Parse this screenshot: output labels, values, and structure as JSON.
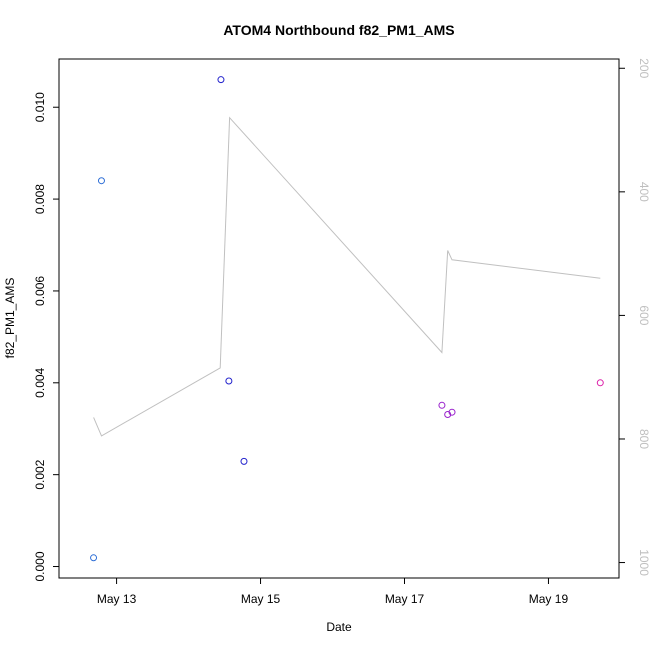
{
  "chart_data": {
    "type": "scatter",
    "title": "ATOM4 Northbound f82_PM1_AMS",
    "xlabel": "Date",
    "ylabel": "f82_PM1_AMS",
    "x_ticks": [
      "May 13",
      "May 15",
      "May 17",
      "May 19"
    ],
    "y_ticks": [
      "0.000",
      "0.002",
      "0.004",
      "0.006",
      "0.008",
      "0.010"
    ],
    "y2_ticks": [
      "200",
      "400",
      "600",
      "800",
      "1000"
    ],
    "x_range_days": [
      12.2,
      19.98
    ],
    "x_tick_days": [
      13,
      15,
      17,
      19
    ],
    "ylim": [
      -0.00025,
      0.01105
    ],
    "y2lim": [
      185,
      1025
    ],
    "y2_reversed": true,
    "grid": false,
    "series": [
      {
        "kind": "points",
        "points": [
          {
            "day": 12.68,
            "value": 0.00019,
            "color": "#2f6fd6"
          },
          {
            "day": 12.79,
            "value": 0.0084,
            "color": "#2f6fd6"
          },
          {
            "day": 14.45,
            "value": 0.0106,
            "color": "#2222cc"
          },
          {
            "day": 14.56,
            "value": 0.00404,
            "color": "#2222cc"
          },
          {
            "day": 14.77,
            "value": 0.00229,
            "color": "#2222cc"
          },
          {
            "day": 17.52,
            "value": 0.00351,
            "color": "#9922cc"
          },
          {
            "day": 17.6,
            "value": 0.00331,
            "color": "#9922cc"
          },
          {
            "day": 17.66,
            "value": 0.00336,
            "color": "#9922cc"
          },
          {
            "day": 19.72,
            "value": 0.004,
            "color": "#dd22aa"
          }
        ]
      },
      {
        "kind": "line",
        "axis": "right",
        "color": "#c0c0c0",
        "points": [
          {
            "day": 12.68,
            "value": 765
          },
          {
            "day": 12.79,
            "value": 795
          },
          {
            "day": 14.44,
            "value": 685
          },
          {
            "day": 14.57,
            "value": 280
          },
          {
            "day": 17.52,
            "value": 660
          },
          {
            "day": 17.6,
            "value": 495
          },
          {
            "day": 17.66,
            "value": 510
          },
          {
            "day": 19.72,
            "value": 540
          }
        ]
      }
    ]
  }
}
